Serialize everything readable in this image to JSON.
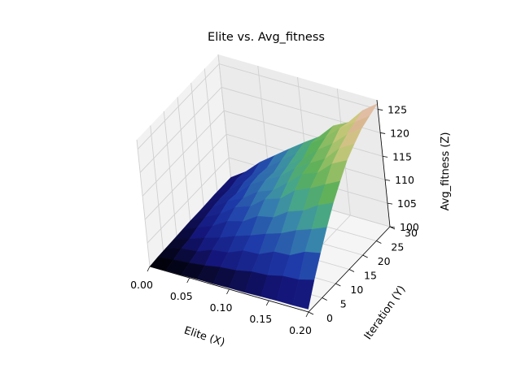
{
  "chart_data": {
    "type": "surface",
    "title": "Elite vs. Avg_fitness",
    "xlabel": "Elite (X)",
    "ylabel": "Iteration (Y)",
    "zlabel": "Avg_fitness (Z)",
    "xlim": [
      0.0,
      0.2
    ],
    "ylim": [
      0,
      30
    ],
    "zlim": [
      100,
      127
    ],
    "x_ticks": [
      "0.00",
      "0.05",
      "0.10",
      "0.15",
      "0.20"
    ],
    "y_ticks": [
      "0",
      "5",
      "10",
      "15",
      "20",
      "25",
      "30"
    ],
    "z_ticks": [
      "100",
      "105",
      "110",
      "115",
      "120",
      "125"
    ],
    "x": [
      0.0,
      0.02,
      0.04,
      0.06,
      0.08,
      0.1,
      0.12,
      0.14,
      0.16,
      0.18,
      0.2
    ],
    "y": [
      0,
      3,
      6,
      9,
      12,
      15,
      18,
      21,
      24,
      27,
      30
    ],
    "z": [
      [
        100.0,
        100.1,
        100.1,
        100.2,
        100.2,
        100.3,
        100.3,
        100.4,
        100.5,
        100.5,
        100.6
      ],
      [
        100.2,
        100.6,
        100.9,
        101.3,
        101.9,
        102.2,
        102.9,
        103.1,
        103.9,
        104.1,
        105.0
      ],
      [
        100.3,
        101.2,
        101.5,
        102.8,
        103.2,
        104.6,
        104.8,
        106.3,
        106.5,
        108.2,
        108.9
      ],
      [
        100.4,
        101.4,
        102.6,
        103.6,
        104.9,
        106.0,
        107.3,
        108.4,
        110.0,
        111.2,
        112.6
      ],
      [
        100.5,
        102.0,
        103.3,
        105.3,
        106.2,
        108.3,
        109.0,
        111.2,
        112.4,
        114.5,
        116.0
      ],
      [
        100.6,
        102.4,
        104.1,
        106.4,
        107.6,
        110.1,
        111.2,
        113.9,
        115.3,
        117.1,
        118.8
      ],
      [
        100.6,
        102.8,
        105.0,
        106.6,
        108.9,
        110.2,
        112.8,
        115.6,
        116.8,
        119.7,
        121.4
      ],
      [
        100.7,
        103.0,
        104.7,
        107.7,
        109.6,
        111.4,
        114.1,
        116.1,
        118.0,
        121.2,
        123.1
      ],
      [
        100.8,
        102.9,
        105.4,
        107.9,
        109.4,
        112.0,
        114.3,
        117.1,
        119.4,
        122.3,
        124.6
      ],
      [
        100.8,
        103.4,
        105.2,
        107.6,
        110.2,
        112.6,
        115.7,
        117.9,
        120.9,
        123.1,
        125.4
      ],
      [
        100.8,
        103.0,
        106.0,
        108.4,
        110.8,
        113.1,
        115.3,
        118.6,
        120.3,
        123.8,
        126.2
      ]
    ],
    "colormap": "gist_earth",
    "grid": true
  }
}
